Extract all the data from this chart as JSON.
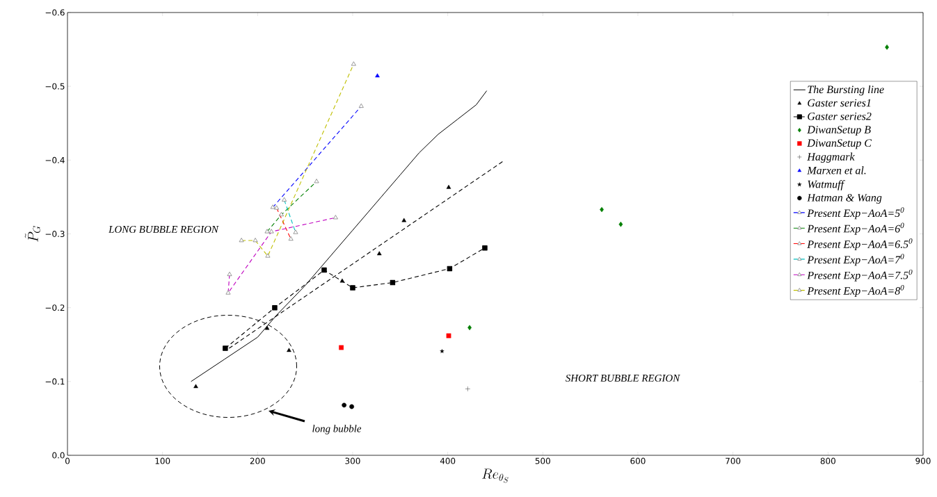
{
  "chart_data": {
    "type": "scatter",
    "xlabel": "Re_{\\theta_S}",
    "ylabel": "\\tilde{P}_G",
    "xlim": [
      0,
      900
    ],
    "xticks": [
      0,
      100,
      200,
      300,
      400,
      500,
      600,
      700,
      800,
      900
    ],
    "ylim": [
      0.0,
      -0.6
    ],
    "yticks": [
      {
        "value": 0.0,
        "label": "0.0"
      },
      {
        "value": -0.1,
        "label": "−0.1"
      },
      {
        "value": -0.2,
        "label": "−0.2"
      },
      {
        "value": -0.3,
        "label": "−0.3"
      },
      {
        "value": -0.4,
        "label": "−0.4"
      },
      {
        "value": -0.5,
        "label": "−0.5"
      },
      {
        "value": -0.6,
        "label": "−0.6"
      }
    ],
    "legend": "right",
    "series": [
      {
        "name": "The Bursting line",
        "type": "line",
        "color": "#000000",
        "marker": "none",
        "line_style": "solid",
        "x": [
          130,
          165,
          200,
          220,
          250,
          270,
          300,
          330,
          350,
          370,
          390,
          410,
          430,
          441
        ],
        "values": [
          -0.1,
          -0.13,
          -0.16,
          -0.19,
          -0.23,
          -0.26,
          -0.305,
          -0.35,
          -0.38,
          -0.41,
          -0.435,
          -0.455,
          -0.475,
          -0.494
        ]
      },
      {
        "name": "Gaster series1",
        "color": "#000000",
        "marker": "triangle",
        "x": [
          135,
          210,
          233,
          289,
          328,
          354,
          401
        ],
        "values": [
          -0.093,
          -0.172,
          -0.142,
          -0.236,
          -0.273,
          -0.318,
          -0.363
        ]
      },
      {
        "name": "Gaster series2",
        "type": "line",
        "color": "#000000",
        "marker": "square",
        "line_style": "dashed",
        "x": [
          166,
          218,
          270,
          300,
          342,
          402,
          439
        ],
        "values": [
          -0.145,
          -0.2,
          -0.251,
          -0.227,
          -0.234,
          -0.253,
          -0.281
        ]
      },
      {
        "type": "line",
        "color": "#000000",
        "marker": "none",
        "line_style": "dashed",
        "x": [
          170,
          460
        ],
        "values": [
          -0.145,
          -0.4
        ]
      },
      {
        "name": "DiwanSetup B",
        "color": "#007f00",
        "marker": "diamond",
        "x": [
          862,
          562,
          582,
          423
        ],
        "values": [
          -0.553,
          -0.333,
          -0.313,
          -0.173
        ]
      },
      {
        "name": "DiwanSetup C",
        "color": "#ff0000",
        "marker": "square",
        "x": [
          288,
          401
        ],
        "values": [
          -0.146,
          -0.162
        ]
      },
      {
        "name": "Haggmark",
        "color": "#000000",
        "marker": "cross",
        "x": [
          421
        ],
        "values": [
          -0.09
        ]
      },
      {
        "name": "Marxen et al.",
        "color": "#0000ff",
        "marker": "triangle",
        "x": [
          326
        ],
        "values": [
          -0.514
        ]
      },
      {
        "name": "Watmuff",
        "color": "#000000",
        "marker": "star",
        "x": [
          394
        ],
        "values": [
          -0.141
        ]
      },
      {
        "name": "Hatman & Wang",
        "color": "#000000",
        "marker": "circle",
        "x": [
          291,
          299
        ],
        "values": [
          -0.068,
          -0.066
        ]
      },
      {
        "name": "Present Exp−AoA=5$^{0}$",
        "type": "line",
        "color": "#0000ff",
        "marker": "triangle",
        "line_style": "dashed",
        "x": [
          216,
          309
        ],
        "values": [
          -0.336,
          -0.473
        ]
      },
      {
        "name": "Present Exp−AoA=6$^{0}$",
        "type": "line",
        "color": "#008000",
        "marker": "triangle",
        "line_style": "dashed",
        "x": [
          210,
          225,
          262
        ],
        "values": [
          -0.303,
          -0.326,
          -0.371
        ]
      },
      {
        "name": "Present Exp−AoA=6.5$^{0}$",
        "type": "line",
        "color": "#ff0000",
        "marker": "triangle",
        "line_style": "dashed",
        "x": [
          220,
          235
        ],
        "values": [
          -0.335,
          -0.293
        ]
      },
      {
        "name": "Present Exp−AoA=7$^{0}$",
        "type": "line",
        "color": "#00bfbf",
        "marker": "triangle",
        "line_style": "dashed",
        "x": [
          228,
          240
        ],
        "values": [
          -0.346,
          -0.302
        ]
      },
      {
        "name": "Present Exp−AoA=7.5$^{0}$",
        "type": "line",
        "color": "#bf00bf",
        "marker": "triangle",
        "line_style": "dashed",
        "x": [
          170.5,
          169,
          214.5,
          282
        ],
        "values": [
          -0.245,
          -0.22,
          -0.303,
          -0.322
        ]
      },
      {
        "name": "Present Exp−AoA=8$^{0}$",
        "type": "line",
        "color": "#bfbf00",
        "marker": "triangle",
        "line_style": "dashed",
        "x": [
          183,
          197.6,
          210.7,
          301
        ],
        "values": [
          -0.291,
          -0.291,
          -0.27,
          -0.53
        ]
      }
    ],
    "annotations": [
      "LONG BUBBLE REGION",
      "SHORT BUBBLE REGION",
      "long bubble"
    ]
  }
}
